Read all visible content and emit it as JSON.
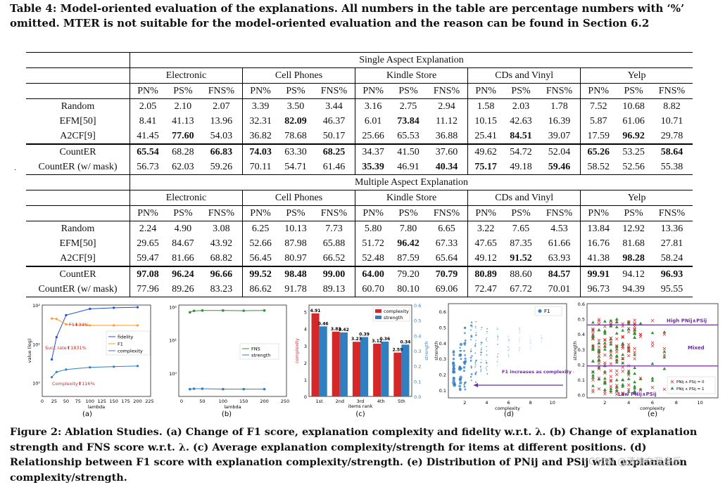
{
  "table_caption": "Table 4: Model-oriented evaluation of the explanations. All numbers in the table are percentage numbers with ‘%’ omitted. MTER is not suitable for the model-oriented evaluation and the reason can be found in Section 6.2",
  "sections": [
    {
      "title": "Single Aspect Explanation",
      "datasets": [
        "Electronic",
        "Cell Phones",
        "Kindle Store",
        "CDs and Vinyl",
        "Yelp"
      ],
      "metrics": [
        "PN%",
        "PS%",
        "FNS%"
      ],
      "rows": [
        {
          "method": "Random",
          "values": [
            "2.05",
            "2.10",
            "2.07",
            "3.39",
            "3.50",
            "3.44",
            "3.16",
            "2.75",
            "2.94",
            "1.58",
            "2.03",
            "1.78",
            "7.52",
            "10.68",
            "8.82"
          ],
          "bold": []
        },
        {
          "method": "EFM[50]",
          "values": [
            "8.41",
            "41.13",
            "13.96",
            "32.31",
            "82.09",
            "46.37",
            "6.01",
            "73.84",
            "11.12",
            "10.15",
            "42.63",
            "16.39",
            "5.87",
            "61.06",
            "10.71"
          ],
          "bold": [
            4,
            7
          ]
        },
        {
          "method": "A2CF[9]",
          "values": [
            "41.45",
            "77.60",
            "54.03",
            "36.82",
            "78.68",
            "50.17",
            "25.66",
            "65.53",
            "36.88",
            "25.41",
            "84.51",
            "39.07",
            "17.59",
            "96.92",
            "29.78"
          ],
          "bold": [
            1,
            10,
            13
          ]
        },
        {
          "method": "CountER",
          "values": [
            "65.54",
            "68.28",
            "66.83",
            "74.03",
            "63.30",
            "68.25",
            "34.37",
            "41.50",
            "37.60",
            "49.62",
            "54.72",
            "52.04",
            "65.26",
            "53.25",
            "58.64"
          ],
          "bold": [
            0,
            2,
            3,
            5,
            12,
            14
          ]
        },
        {
          "method": "CountER (w/ mask)",
          "values": [
            "56.73",
            "62.03",
            "59.26",
            "70.11",
            "54.71",
            "61.46",
            "35.39",
            "46.91",
            "40.34",
            "75.17",
            "49.18",
            "59.46",
            "58.52",
            "52.56",
            "55.38"
          ],
          "bold": [
            6,
            8,
            9,
            11
          ]
        }
      ]
    },
    {
      "title": "Multiple Aspect Explanation",
      "datasets": [
        "Electronic",
        "Cell Phones",
        "Kindle Store",
        "CDs and Vinyl",
        "Yelp"
      ],
      "metrics": [
        "PN%",
        "PS%",
        "FNS%"
      ],
      "rows": [
        {
          "method": "Random",
          "values": [
            "2.24",
            "4.90",
            "3.08",
            "6.25",
            "10.13",
            "7.73",
            "5.80",
            "7.80",
            "6.65",
            "3.22",
            "7.65",
            "4.53",
            "13.84",
            "12.92",
            "13.36"
          ],
          "bold": []
        },
        {
          "method": "EFM[50]",
          "values": [
            "29.65",
            "84.67",
            "43.92",
            "52.66",
            "87.98",
            "65.88",
            "51.72",
            "96.42",
            "67.33",
            "47.65",
            "87.35",
            "61.66",
            "16.76",
            "81.68",
            "27.81"
          ],
          "bold": [
            7
          ]
        },
        {
          "method": "A2CF[9]",
          "values": [
            "59.47",
            "81.66",
            "68.82",
            "56.45",
            "80.97",
            "66.52",
            "52.48",
            "87.59",
            "65.64",
            "49.12",
            "91.52",
            "63.93",
            "41.38",
            "98.28",
            "58.24"
          ],
          "bold": [
            10,
            13
          ]
        },
        {
          "method": "CountER",
          "values": [
            "97.08",
            "96.24",
            "96.66",
            "99.52",
            "98.48",
            "99.00",
            "64.00",
            "79.20",
            "70.79",
            "80.89",
            "88.60",
            "84.57",
            "99.91",
            "94.12",
            "96.93"
          ],
          "bold": [
            0,
            1,
            2,
            3,
            4,
            5,
            6,
            8,
            9,
            11,
            12,
            14
          ]
        },
        {
          "method": "CountER (w/ mask)",
          "values": [
            "77.96",
            "89.26",
            "83.23",
            "86.62",
            "91.78",
            "89.13",
            "60.70",
            "80.10",
            "69.06",
            "72.47",
            "67.72",
            "70.01",
            "96.73",
            "94.39",
            "95.55"
          ],
          "bold": []
        }
      ]
    }
  ],
  "figure_caption": "Figure 2: Ablation Studies. (a) Change of F1 score, explanation complexity and fidelity w.r.t. λ. (b) Change of explanation strength and FNS score w.r.t. λ. (c) Average explanation complexity/strength for items at different positions. (d) Relationship between F1 score with explanation complexity/strength. (e) Distribution of PNij and PSij with explanation complexity/strength.",
  "watermark": "CSDN @清坤在我身后",
  "colors": {
    "blue": "#1f4fd8",
    "orange": "#ff9a2e",
    "steel": "#2f7fc1",
    "green": "#3a8f3a",
    "red": "#d62728",
    "purple": "#6b2fa0"
  },
  "chart_data": [
    {
      "panel": "(a)",
      "type": "line",
      "xlabel": "lambda",
      "ylabel": "value (log)",
      "yscale": "log",
      "x": [
        20,
        30,
        50,
        100,
        150,
        200
      ],
      "series": [
        {
          "name": "fidelity",
          "values": [
            4,
            15,
            55,
            80,
            85,
            88
          ]
        },
        {
          "name": "F1",
          "values": [
            45,
            44,
            32,
            30,
            30,
            30
          ]
        },
        {
          "name": "complexity",
          "values": [
            1.4,
            1.9,
            2.2,
            2.5,
            2.6,
            2.7
          ]
        }
      ],
      "xticks": [
        "0",
        "25",
        "50",
        "75",
        "100",
        "125",
        "150",
        "175",
        "200",
        "225"
      ],
      "yticks": [
        "10⁰",
        "10¹",
        "10²"
      ],
      "annotations": [
        "F1⬇34%",
        "Succ rate⬆1831%",
        "Complexity⬆116%"
      ]
    },
    {
      "panel": "(b)",
      "type": "line",
      "xlabel": "lambda",
      "yscale": "log",
      "x": [
        20,
        30,
        50,
        100,
        150,
        200
      ],
      "series": [
        {
          "name": "FNS",
          "values": [
            68,
            75,
            77,
            77,
            76,
            77
          ]
        },
        {
          "name": "strength",
          "values": [
            0.33,
            0.34,
            0.34,
            0.33,
            0.33,
            0.33
          ]
        }
      ],
      "xticks": [
        "0",
        "50",
        "100",
        "150",
        "200",
        "250"
      ],
      "yticks": [
        "10⁰",
        "10¹",
        "10²"
      ]
    },
    {
      "panel": "(c)",
      "type": "bar",
      "xlabel": "items rank",
      "ylabel": "complexity",
      "y2label": "strength",
      "categories": [
        "1st",
        "2nd",
        "3rd",
        "4th",
        "5th"
      ],
      "series": [
        {
          "name": "complexity",
          "values": [
            4.91,
            3.83,
            3.23,
            3.12,
            2.59
          ]
        },
        {
          "name": "strength",
          "values": [
            0.46,
            0.42,
            0.39,
            0.36,
            0.34
          ]
        }
      ],
      "yticks": [
        "0",
        "1",
        "2",
        "3",
        "4",
        "5"
      ],
      "y2ticks": [
        "0.0",
        "0.1",
        "0.2",
        "0.3",
        "0.4",
        "0.5",
        "0.6"
      ]
    },
    {
      "panel": "(d)",
      "type": "scatter",
      "xlabel": "complexity",
      "ylabel": "strength",
      "legend": "F1",
      "xticks": [
        "2",
        "4",
        "6",
        "8",
        "10"
      ],
      "yticks": [
        "0.1",
        "0.2",
        "0.3",
        "0.4",
        "0.5",
        "0.6"
      ],
      "annotation": "F1 increases as complexity decreases"
    },
    {
      "panel": "(e)",
      "type": "scatter",
      "xlabel": "complexity",
      "ylabel": "strength",
      "xticks": [
        "2",
        "4",
        "6",
        "8",
        "10"
      ],
      "yticks": [
        "0.0",
        "0.1",
        "0.2",
        "0.3",
        "0.4",
        "0.5",
        "0.6"
      ],
      "legend": [
        "PNij ∧ PSij = 0",
        "PNij ∧ PSij = 1"
      ],
      "labels": [
        "High PNij∧PSij",
        "Mixed",
        "Low PNij∧PSij"
      ]
    }
  ]
}
